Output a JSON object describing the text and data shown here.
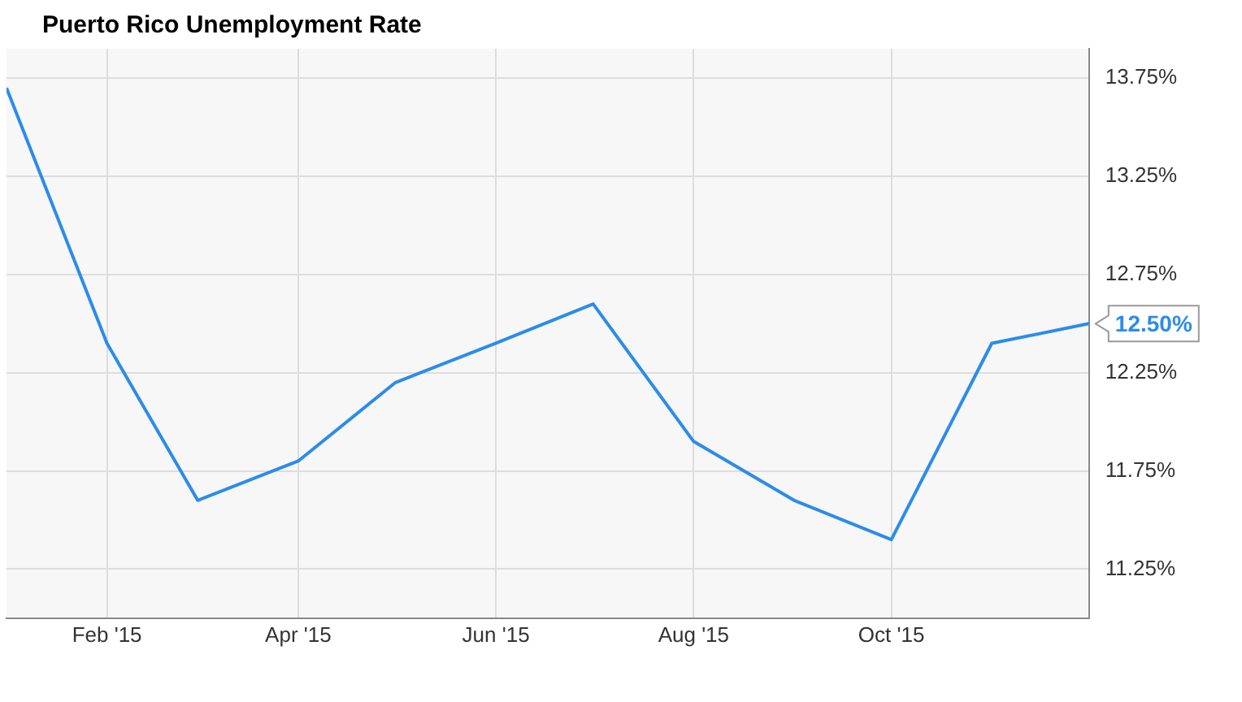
{
  "chart_data": {
    "type": "line",
    "title": "Puerto Rico Unemployment Rate",
    "x": [
      "2015-01",
      "2015-02",
      "2015-03",
      "2015-04",
      "2015-05",
      "2015-06",
      "2015-07",
      "2015-08",
      "2015-09",
      "2015-10",
      "2015-11",
      "2015-12"
    ],
    "series": [
      {
        "color": "#2b8ceb",
        "values": [
          13.7,
          12.4,
          11.6,
          11.8,
          12.2,
          12.4,
          12.6,
          11.9,
          11.6,
          11.4,
          12.4,
          12.5
        ],
        "value_labels": [
          null,
          null,
          null,
          null,
          null,
          null,
          null,
          null,
          null,
          null,
          null,
          "12.50%"
        ]
      }
    ],
    "xlim": [
      "2015-01",
      "2015-12"
    ],
    "xticks": [
      {
        "value": "2015-02",
        "label": "Feb '15"
      },
      {
        "value": "2015-04",
        "label": "Apr '15"
      },
      {
        "value": "2015-06",
        "label": "Jun '15"
      },
      {
        "value": "2015-08",
        "label": "Aug '15"
      },
      {
        "value": "2015-10",
        "label": "Oct '15"
      }
    ],
    "ylim": [
      11.0,
      13.9
    ],
    "yticks": [
      {
        "value": 11.25,
        "label": "11.25%"
      },
      {
        "value": 11.75,
        "label": "11.75%"
      },
      {
        "value": 12.25,
        "label": "12.25%"
      },
      {
        "value": 12.75,
        "label": "12.75%"
      },
      {
        "value": 13.25,
        "label": "13.25%"
      },
      {
        "value": 13.75,
        "label": "13.75%"
      }
    ],
    "grid": true,
    "legend": false,
    "marker": "none",
    "line_style": "solid"
  }
}
